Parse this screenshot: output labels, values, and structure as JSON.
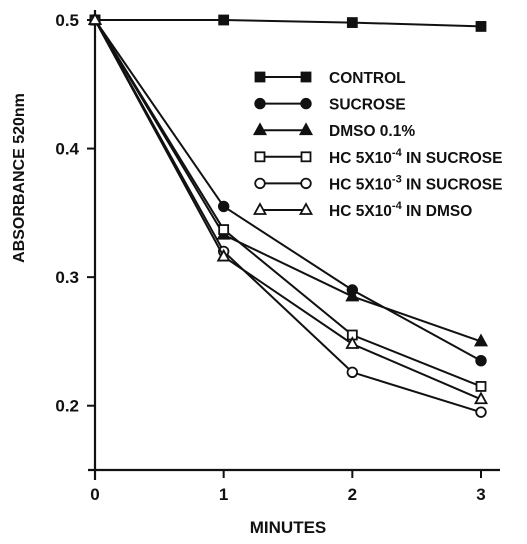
{
  "chart_data": {
    "type": "line",
    "xlabel": "MINUTES",
    "ylabel": "ABSORBANCE 520nm",
    "xlim": [
      0,
      3
    ],
    "ylim": [
      0.15,
      0.5
    ],
    "grid": false,
    "legend_position": "top-right",
    "x": [
      0,
      1,
      2,
      3
    ],
    "x_ticks": [
      "0",
      "1",
      "2",
      "3"
    ],
    "y_ticks": [
      {
        "value": 0.2,
        "label": "0.2"
      },
      {
        "value": 0.3,
        "label": "0.3"
      },
      {
        "value": 0.4,
        "label": "0.4"
      },
      {
        "value": 0.5,
        "label": "0.5"
      }
    ],
    "series": [
      {
        "name": "CONTROL",
        "marker": "filled-square",
        "values": [
          0.5,
          0.5,
          0.498,
          0.495
        ]
      },
      {
        "name": "SUCROSE",
        "marker": "filled-circle",
        "values": [
          0.5,
          0.355,
          0.29,
          0.235
        ]
      },
      {
        "name": "DMSO 0.1%",
        "marker": "filled-triangle",
        "values": [
          0.5,
          0.333,
          0.285,
          0.25
        ]
      },
      {
        "name": "HC 5X10",
        "name_exp": "-4",
        "name_tail": " IN SUCROSE",
        "marker": "open-square",
        "values": [
          0.5,
          0.337,
          0.255,
          0.215
        ]
      },
      {
        "name": "HC 5X10",
        "name_exp": "-3",
        "name_tail": " IN SUCROSE",
        "marker": "open-circle",
        "values": [
          0.5,
          0.32,
          0.226,
          0.195
        ]
      },
      {
        "name": "HC 5X10",
        "name_exp": "-4",
        "name_tail": " IN DMSO",
        "marker": "open-triangle",
        "values": [
          0.5,
          0.316,
          0.248,
          0.205
        ]
      }
    ]
  }
}
